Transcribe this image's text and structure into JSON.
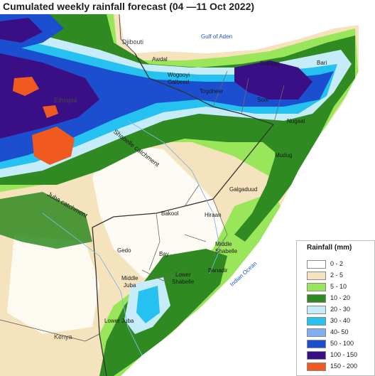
{
  "title": "Cumulated weekly  rainfall forecast  (04 —11 Oct 2022)",
  "labels": {
    "djibouti": "Djibouti",
    "gulf": "Gulf of Aden",
    "awdal": "Awdal",
    "sanaag": "Sanaag",
    "bari": "Bari",
    "wogooyi": "Wogooyi",
    "galbeed": "Galbeed",
    "togdheer": "Togdheer",
    "sool": "Sool",
    "ethiopia": "Ethiopia",
    "nugaal": "Nugaal",
    "shabelle_catchment": "Shabelle catchment",
    "mudug": "Mudug",
    "galgaduud": "Galgaduud",
    "juba_catchment": "Juba catchment",
    "bakool": "Bakool",
    "hiraan": "Hiraan",
    "middle_shabelle_1": "Middle",
    "middle_shabelle_2": "Shabelle",
    "gedo": "Gedo",
    "bay": "Bay",
    "indian_ocean": "Indian Ocean",
    "banadir": "Banadir",
    "lower_shabelle_1": "Lower",
    "lower_shabelle_2": "Shabelle",
    "middle_juba_1": "Middle",
    "middle_juba_2": "Juba",
    "lower_juba": "Lower Juba",
    "kenya": "Kenya"
  },
  "legend": {
    "title": "Rainfall (mm)",
    "items": [
      {
        "label": "0 - 2",
        "color": "#ffffff"
      },
      {
        "label": "2 - 5",
        "color": "#f5e3bd"
      },
      {
        "label": "5 - 10",
        "color": "#9ae65a"
      },
      {
        "label": "10 - 20",
        "color": "#2f8a22"
      },
      {
        "label": "20 - 30",
        "color": "#c6ecfa"
      },
      {
        "label": "30 - 40",
        "color": "#25c1f0"
      },
      {
        "label": "40- 50",
        "color": "#80aef2"
      },
      {
        "label": "50 - 100",
        "color": "#1b4fd0"
      },
      {
        "label": "100 - 150",
        "color": "#3a0f86"
      },
      {
        "label": "150 - 200",
        "color": "#f05a1e"
      }
    ]
  }
}
